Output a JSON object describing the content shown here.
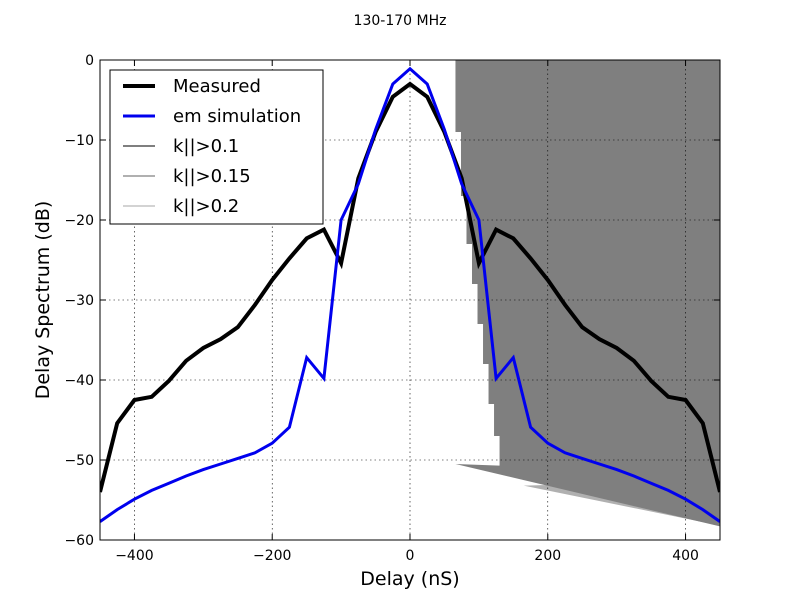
{
  "chart_data": {
    "type": "line",
    "title": "130-170 MHz",
    "xlabel": "Delay (nS)",
    "ylabel": "Delay Spectrum (dB)",
    "xlim": [
      -450,
      450
    ],
    "ylim": [
      -60,
      0
    ],
    "xticks": [
      -400,
      -200,
      0,
      200,
      400
    ],
    "xtick_labels": [
      "−400",
      "−200",
      "0",
      "200",
      "400"
    ],
    "yticks": [
      -60,
      -50,
      -40,
      -30,
      -20,
      -10,
      0
    ],
    "ytick_labels": [
      "−60",
      "−50",
      "−40",
      "−30",
      "−20",
      "−10",
      "0"
    ],
    "grid": true,
    "legend_location": "upper-left",
    "series": [
      {
        "name": "Measured",
        "color": "#000000",
        "x": [
          -450,
          -425,
          -400,
          -375,
          -350,
          -325,
          -300,
          -275,
          -250,
          -225,
          -200,
          -175,
          -150,
          -125,
          -100,
          -75,
          -50,
          -25,
          0,
          25,
          50,
          75,
          100,
          125,
          150,
          175,
          200,
          225,
          250,
          275,
          300,
          325,
          350,
          375,
          400,
          425,
          450
        ],
        "y": [
          -54,
          -45.4,
          -42.5,
          -42.1,
          -40.1,
          -37.6,
          -36,
          -34.9,
          -33.4,
          -30.6,
          -27.5,
          -24.8,
          -22.3,
          -21.2,
          -25.4,
          -14.8,
          -9,
          -4.6,
          -3,
          -4.6,
          -9,
          -14.8,
          -25.4,
          -21.2,
          -22.3,
          -24.8,
          -27.5,
          -30.6,
          -33.4,
          -34.9,
          -36,
          -37.6,
          -40.1,
          -42.1,
          -42.5,
          -45.4,
          -54
        ]
      },
      {
        "name": "em simulation",
        "color": "#0000ee",
        "x": [
          -450,
          -425,
          -400,
          -375,
          -350,
          -325,
          -300,
          -275,
          -250,
          -225,
          -200,
          -175,
          -150,
          -125,
          -100,
          -75,
          -50,
          -25,
          0,
          25,
          50,
          75,
          100,
          125,
          150,
          175,
          200,
          225,
          250,
          275,
          300,
          325,
          350,
          375,
          400,
          425,
          450
        ],
        "y": [
          -57.7,
          -56.2,
          -54.9,
          -53.8,
          -52.9,
          -52,
          -51.2,
          -50.5,
          -49.8,
          -49.1,
          -47.9,
          -45.9,
          -37.2,
          -39.8,
          -20,
          -15.5,
          -8.7,
          -3,
          -1.1,
          -3,
          -8.7,
          -15.5,
          -20,
          -39.8,
          -37.2,
          -45.9,
          -47.9,
          -49.1,
          -49.8,
          -50.5,
          -51.2,
          -52,
          -52.9,
          -53.8,
          -54.9,
          -56.2,
          -57.7
        ]
      }
    ],
    "shaded_regions": [
      {
        "name": "k||>0.2",
        "color": "#d3d3d3",
        "upper": 0,
        "lower_boundary": {
          "x": [
            265,
            450
          ],
          "y": [
            -54.6,
            -58.1
          ]
        },
        "left_edge": {
          "x": [
            265,
            265,
            273,
            273,
            281,
            281,
            289,
            289,
            297,
            297,
            305,
            305,
            313,
            313,
            321,
            321,
            329,
            329,
            337,
            337,
            345,
            345,
            353
          ],
          "y": [
            0,
            -7,
            -7,
            -14,
            -14,
            -21,
            -21,
            -26,
            -26,
            -31,
            -31,
            -35,
            -35,
            -38,
            -38,
            -41,
            -41,
            -44,
            -44,
            -47,
            -47,
            -50,
            -53
          ]
        }
      },
      {
        "name": "k||>0.15",
        "color": "#b0b0b0",
        "upper": 0,
        "lower_boundary": {
          "x": [
            165,
            450
          ],
          "y": [
            -53.2,
            -58.2
          ]
        },
        "left_edge": {
          "x": [
            165,
            165,
            175,
            175,
            185,
            185,
            195,
            195,
            205,
            205,
            215,
            215,
            225,
            225,
            235,
            235,
            245,
            245,
            255,
            255
          ],
          "y": [
            0,
            -8,
            -8,
            -16,
            -16,
            -23,
            -23,
            -29,
            -29,
            -34,
            -34,
            -38,
            -38,
            -42,
            -42,
            -45,
            -45,
            -49,
            -49,
            -53
          ]
        }
      },
      {
        "name": "k||>0.1",
        "color": "#7f7f7f",
        "upper": 0,
        "lower_boundary": {
          "x": [
            66,
            450
          ],
          "y": [
            -50.5,
            -58.3
          ]
        },
        "left_edge": {
          "x": [
            66,
            66,
            74,
            74,
            82,
            82,
            90,
            90,
            98,
            98,
            106,
            106,
            114,
            114,
            122,
            122,
            130,
            130
          ],
          "y": [
            0,
            -9,
            -9,
            -17,
            -17,
            -23,
            -23,
            -28,
            -28,
            -33,
            -33,
            -38,
            -38,
            -43,
            -43,
            -47,
            -47,
            -50.7
          ]
        }
      }
    ]
  },
  "legend": {
    "items": [
      {
        "label": "Measured",
        "color": "#000000",
        "width": 4
      },
      {
        "label": "em simulation",
        "color": "#0000ee",
        "width": 3
      },
      {
        "label": "k||>0.1",
        "color": "#7f7f7f",
        "width": 2
      },
      {
        "label": "k||>0.15",
        "color": "#b0b0b0",
        "width": 2
      },
      {
        "label": "k||>0.2",
        "color": "#d3d3d3",
        "width": 2
      }
    ]
  }
}
